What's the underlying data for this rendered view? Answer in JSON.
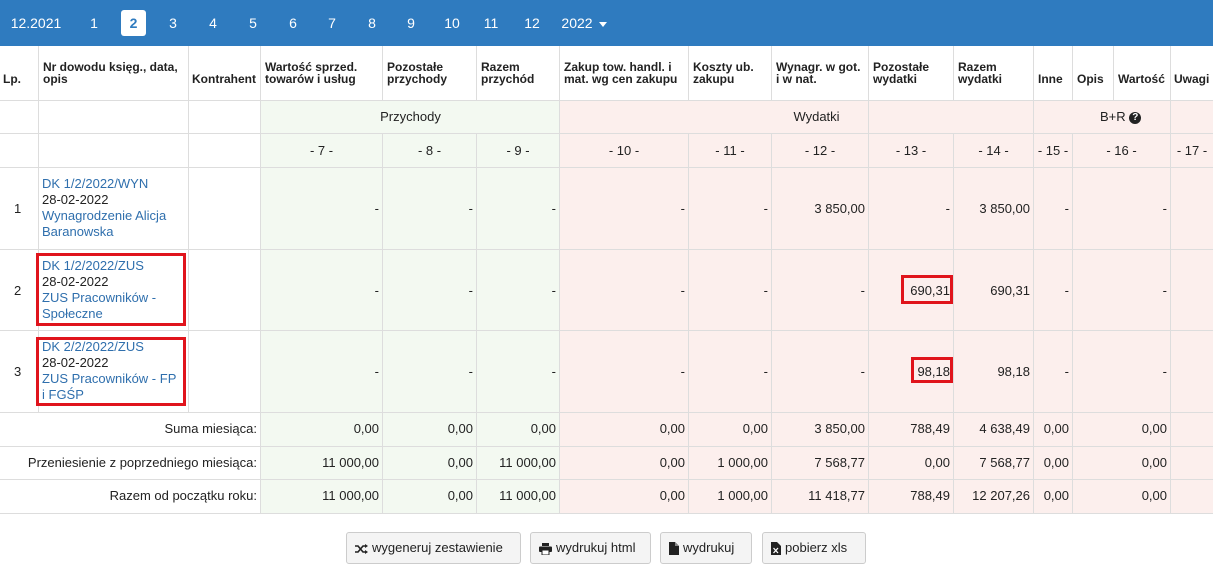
{
  "months": [
    "12.2021",
    "1",
    "2",
    "3",
    "4",
    "5",
    "6",
    "7",
    "8",
    "9",
    "10",
    "11",
    "12"
  ],
  "year": "2022",
  "columns": {
    "lp": "Lp.",
    "nr1": "Nr dowodu księg., data,",
    "nr2": "opis",
    "kontrahent": "Kontrahent",
    "c7a": "Wartość sprzed.",
    "c7b": "towarów i usług",
    "c8a": "Pozostałe",
    "c8b": "przychody",
    "c9a": "Razem",
    "c9b": "przychód",
    "c10a": "Zakup tow. handl. i",
    "c10b": "mat. wg cen zakupu",
    "c11a": "Koszty ub.",
    "c11b": "zakupu",
    "c12a": "Wynagr. w got.",
    "c12b": "i w nat.",
    "c13a": "Pozostałe",
    "c13b": "wydatki",
    "c14a": "Razem",
    "c14b": "wydatki",
    "inne": "Inne",
    "opis": "Opis",
    "wartosc": "Wartość",
    "uwagi": "Uwagi"
  },
  "groups": {
    "przychody": "Przychody",
    "wydatki": "Wydatki",
    "br": "B+R"
  },
  "colnums": [
    "- 7 -",
    "- 8 -",
    "- 9 -",
    "- 10 -",
    "- 11 -",
    "- 12 -",
    "- 13 -",
    "- 14 -",
    "- 15 -",
    "- 16 -",
    "- 17 -"
  ],
  "rows": [
    {
      "lp": "1",
      "doc": "DK 1/2/2022/WYN",
      "date": "28-02-2022",
      "desc1": "Wynagrodzenie Alicja",
      "desc2": "Baranowska",
      "vals": [
        "-",
        "-",
        "-",
        "-",
        "-",
        "3 850,00",
        "-",
        "3 850,00",
        "-",
        "-"
      ]
    },
    {
      "lp": "2",
      "doc": "DK 1/2/2022/ZUS",
      "date": "28-02-2022",
      "desc1": "ZUS Pracowników -",
      "desc2": "Społeczne",
      "vals": [
        "-",
        "-",
        "-",
        "-",
        "-",
        "-",
        "690,31",
        "690,31",
        "-",
        "-"
      ]
    },
    {
      "lp": "3",
      "doc": "DK 2/2/2022/ZUS",
      "date": "28-02-2022",
      "desc1": "ZUS Pracowników - FP",
      "desc2": "i FGŚP",
      "vals": [
        "-",
        "-",
        "-",
        "-",
        "-",
        "-",
        "98,18",
        "98,18",
        "-",
        "-"
      ]
    }
  ],
  "summary": [
    {
      "label": "Suma miesiąca:",
      "vals": [
        "0,00",
        "0,00",
        "0,00",
        "0,00",
        "0,00",
        "3 850,00",
        "788,49",
        "4 638,49",
        "0,00",
        "0,00"
      ]
    },
    {
      "label": "Przeniesienie z poprzedniego miesiąca:",
      "vals": [
        "11 000,00",
        "0,00",
        "11 000,00",
        "0,00",
        "1 000,00",
        "7 568,77",
        "0,00",
        "7 568,77",
        "0,00",
        "0,00"
      ]
    },
    {
      "label": "Razem od początku roku:",
      "vals": [
        "11 000,00",
        "0,00",
        "11 000,00",
        "0,00",
        "1 000,00",
        "11 418,77",
        "788,49",
        "12 207,26",
        "0,00",
        "0,00"
      ]
    }
  ],
  "buttons": {
    "generate": "wygeneruj zestawienie",
    "print_html": "wydrukuj html",
    "print": "wydrukuj",
    "xls": "pobierz xls"
  },
  "colors": {
    "topbar": "#2f7bbf",
    "income_bg": "#f3f9f1",
    "expense_bg": "#fcefed",
    "highlight": "#e0141c",
    "link": "#2f6fad"
  }
}
